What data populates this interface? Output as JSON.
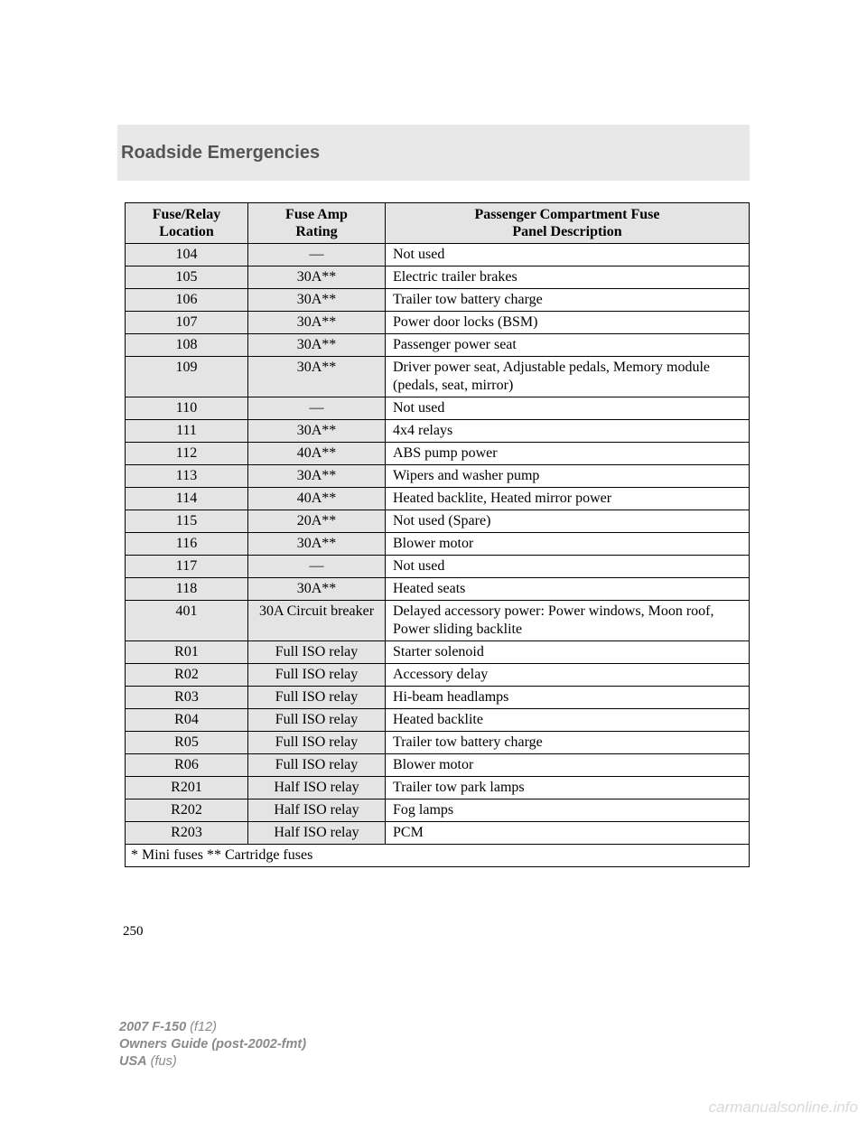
{
  "section_title": "Roadside Emergencies",
  "page_number": "250",
  "table": {
    "headers": {
      "col1_l1": "Fuse/Relay",
      "col1_l2": "Location",
      "col2_l1": "Fuse Amp",
      "col2_l2": "Rating",
      "col3_l1": "Passenger Compartment Fuse",
      "col3_l2": "Panel Description"
    },
    "rows": [
      {
        "loc": "104",
        "amp": "—",
        "desc": "Not used"
      },
      {
        "loc": "105",
        "amp": "30A**",
        "desc": "Electric trailer brakes"
      },
      {
        "loc": "106",
        "amp": "30A**",
        "desc": "Trailer tow battery charge"
      },
      {
        "loc": "107",
        "amp": "30A**",
        "desc": "Power door locks (BSM)"
      },
      {
        "loc": "108",
        "amp": "30A**",
        "desc": "Passenger power seat"
      },
      {
        "loc": "109",
        "amp": "30A**",
        "desc": "Driver power seat, Adjustable pedals, Memory module (pedals, seat, mirror)"
      },
      {
        "loc": "110",
        "amp": "—",
        "desc": "Not used"
      },
      {
        "loc": "111",
        "amp": "30A**",
        "desc": "4x4 relays"
      },
      {
        "loc": "112",
        "amp": "40A**",
        "desc": "ABS pump power"
      },
      {
        "loc": "113",
        "amp": "30A**",
        "desc": "Wipers and washer pump"
      },
      {
        "loc": "114",
        "amp": "40A**",
        "desc": "Heated backlite, Heated mirror power"
      },
      {
        "loc": "115",
        "amp": "20A**",
        "desc": "Not used (Spare)"
      },
      {
        "loc": "116",
        "amp": "30A**",
        "desc": "Blower motor"
      },
      {
        "loc": "117",
        "amp": "—",
        "desc": "Not used"
      },
      {
        "loc": "118",
        "amp": "30A**",
        "desc": "Heated seats"
      },
      {
        "loc": "401",
        "amp": "30A Circuit breaker",
        "desc": "Delayed accessory power: Power windows, Moon roof, Power sliding backlite"
      },
      {
        "loc": "R01",
        "amp": "Full ISO relay",
        "desc": "Starter solenoid"
      },
      {
        "loc": "R02",
        "amp": "Full ISO relay",
        "desc": "Accessory delay"
      },
      {
        "loc": "R03",
        "amp": "Full ISO relay",
        "desc": "Hi-beam headlamps"
      },
      {
        "loc": "R04",
        "amp": "Full ISO relay",
        "desc": "Heated backlite"
      },
      {
        "loc": "R05",
        "amp": "Full ISO relay",
        "desc": "Trailer tow battery charge"
      },
      {
        "loc": "R06",
        "amp": "Full ISO relay",
        "desc": "Blower motor"
      },
      {
        "loc": "R201",
        "amp": "Half ISO relay",
        "desc": "Trailer tow park lamps"
      },
      {
        "loc": "R202",
        "amp": "Half ISO relay",
        "desc": "Fog lamps"
      },
      {
        "loc": "R203",
        "amp": "Half ISO relay",
        "desc": "PCM"
      }
    ],
    "footnote": "* Mini fuses ** Cartridge fuses"
  },
  "footer": {
    "line1_bold": "2007 F-150",
    "line1_rest": " (f12)",
    "line2": "Owners Guide (post-2002-fmt)",
    "line3_bold": "USA",
    "line3_rest": " (fus)"
  },
  "watermark": "carmanualsonline.info"
}
